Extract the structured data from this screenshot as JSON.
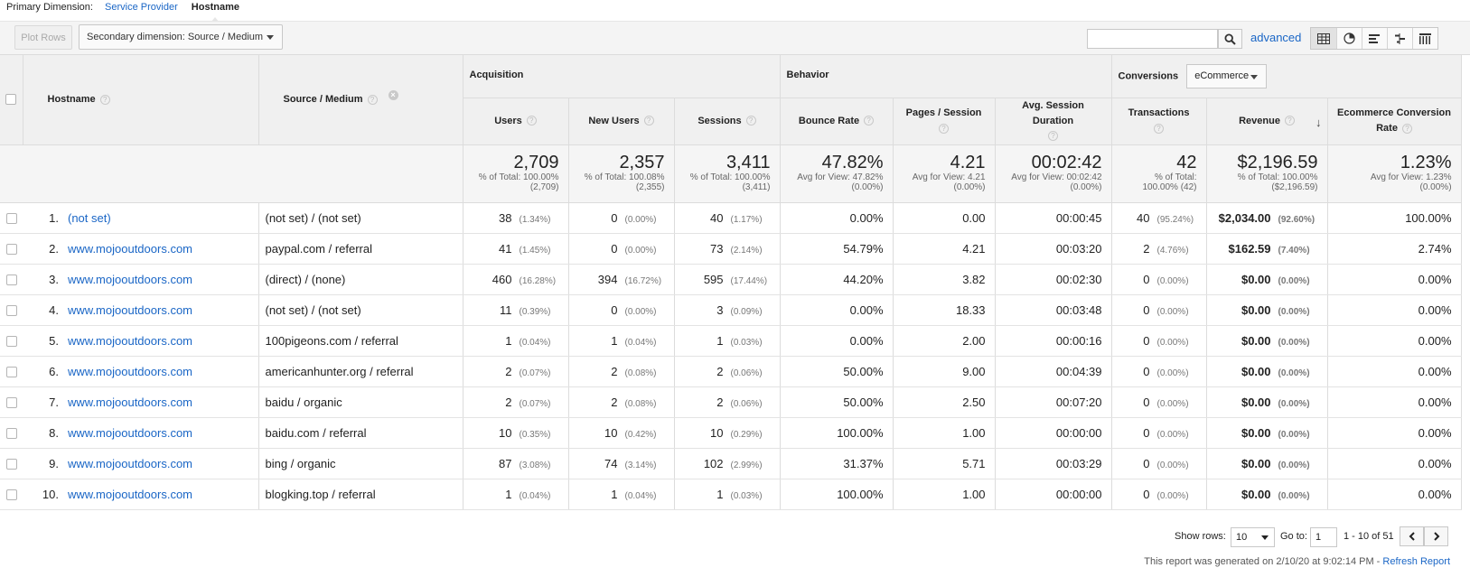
{
  "primary_dimension": {
    "label": "Primary Dimension:",
    "options": [
      "Service Provider",
      "Hostname"
    ],
    "active": "Hostname"
  },
  "toolbar": {
    "plot_rows": "Plot Rows",
    "secondary_dimension": "Secondary dimension: Source / Medium",
    "search_value": "",
    "advanced": "advanced",
    "views": [
      "table-icon",
      "pie-icon",
      "bar-icon",
      "comparison-icon",
      "pivot-icon"
    ]
  },
  "table": {
    "groups": {
      "acquisition": "Acquisition",
      "behavior": "Behavior",
      "conversions": "Conversions",
      "conversions_select": "eCommerce"
    },
    "columns": {
      "hostname": "Hostname",
      "source_medium": "Source / Medium",
      "users": "Users",
      "new_users": "New Users",
      "sessions": "Sessions",
      "bounce_rate": "Bounce Rate",
      "pages_session": "Pages / Session",
      "avg_session_duration": "Avg. Session Duration",
      "transactions": "Transactions",
      "revenue": "Revenue",
      "ecommerce_conversion_rate": "Ecommerce Conversion Rate"
    },
    "totals": {
      "users": {
        "value": "2,709",
        "sub1": "% of Total: 100.00%",
        "sub2": "(2,709)"
      },
      "new_users": {
        "value": "2,357",
        "sub1": "% of Total: 100.08%",
        "sub2": "(2,355)"
      },
      "sessions": {
        "value": "3,411",
        "sub1": "% of Total: 100.00%",
        "sub2": "(3,411)"
      },
      "bounce_rate": {
        "value": "47.82%",
        "sub1": "Avg for View: 47.82%",
        "sub2": "(0.00%)"
      },
      "pages_session": {
        "value": "4.21",
        "sub1": "Avg for View: 4.21",
        "sub2": "(0.00%)"
      },
      "avg_session_duration": {
        "value": "00:02:42",
        "sub1": "Avg for View: 00:02:42",
        "sub2": "(0.00%)"
      },
      "transactions": {
        "value": "42",
        "sub1": "% of Total:",
        "sub2": "100.00% (42)"
      },
      "revenue": {
        "value": "$2,196.59",
        "sub1": "% of Total: 100.00%",
        "sub2": "($2,196.59)"
      },
      "ecommerce_conversion_rate": {
        "value": "1.23%",
        "sub1": "Avg for View: 1.23%",
        "sub2": "(0.00%)"
      }
    },
    "rows": [
      {
        "idx": "1.",
        "hostname": "(not set)",
        "source": "(not set) / (not set)",
        "users": "38",
        "users_pct": "(1.34%)",
        "new_users": "0",
        "new_users_pct": "(0.00%)",
        "sessions": "40",
        "sessions_pct": "(1.17%)",
        "bounce": "0.00%",
        "pages": "0.00",
        "duration": "00:00:45",
        "transactions": "40",
        "transactions_pct": "(95.24%)",
        "revenue": "$2,034.00",
        "revenue_pct": "(92.60%)",
        "conv": "100.00%"
      },
      {
        "idx": "2.",
        "hostname": "www.mojooutdoors.com",
        "source": "paypal.com / referral",
        "users": "41",
        "users_pct": "(1.45%)",
        "new_users": "0",
        "new_users_pct": "(0.00%)",
        "sessions": "73",
        "sessions_pct": "(2.14%)",
        "bounce": "54.79%",
        "pages": "4.21",
        "duration": "00:03:20",
        "transactions": "2",
        "transactions_pct": "(4.76%)",
        "revenue": "$162.59",
        "revenue_pct": "(7.40%)",
        "conv": "2.74%"
      },
      {
        "idx": "3.",
        "hostname": "www.mojooutdoors.com",
        "source": "(direct) / (none)",
        "users": "460",
        "users_pct": "(16.28%)",
        "new_users": "394",
        "new_users_pct": "(16.72%)",
        "sessions": "595",
        "sessions_pct": "(17.44%)",
        "bounce": "44.20%",
        "pages": "3.82",
        "duration": "00:02:30",
        "transactions": "0",
        "transactions_pct": "(0.00%)",
        "revenue": "$0.00",
        "revenue_pct": "(0.00%)",
        "conv": "0.00%"
      },
      {
        "idx": "4.",
        "hostname": "www.mojooutdoors.com",
        "source": "(not set) / (not set)",
        "users": "11",
        "users_pct": "(0.39%)",
        "new_users": "0",
        "new_users_pct": "(0.00%)",
        "sessions": "3",
        "sessions_pct": "(0.09%)",
        "bounce": "0.00%",
        "pages": "18.33",
        "duration": "00:03:48",
        "transactions": "0",
        "transactions_pct": "(0.00%)",
        "revenue": "$0.00",
        "revenue_pct": "(0.00%)",
        "conv": "0.00%"
      },
      {
        "idx": "5.",
        "hostname": "www.mojooutdoors.com",
        "source": "100pigeons.com / referral",
        "users": "1",
        "users_pct": "(0.04%)",
        "new_users": "1",
        "new_users_pct": "(0.04%)",
        "sessions": "1",
        "sessions_pct": "(0.03%)",
        "bounce": "0.00%",
        "pages": "2.00",
        "duration": "00:00:16",
        "transactions": "0",
        "transactions_pct": "(0.00%)",
        "revenue": "$0.00",
        "revenue_pct": "(0.00%)",
        "conv": "0.00%"
      },
      {
        "idx": "6.",
        "hostname": "www.mojooutdoors.com",
        "source": "americanhunter.org / referral",
        "users": "2",
        "users_pct": "(0.07%)",
        "new_users": "2",
        "new_users_pct": "(0.08%)",
        "sessions": "2",
        "sessions_pct": "(0.06%)",
        "bounce": "50.00%",
        "pages": "9.00",
        "duration": "00:04:39",
        "transactions": "0",
        "transactions_pct": "(0.00%)",
        "revenue": "$0.00",
        "revenue_pct": "(0.00%)",
        "conv": "0.00%"
      },
      {
        "idx": "7.",
        "hostname": "www.mojooutdoors.com",
        "source": "baidu / organic",
        "users": "2",
        "users_pct": "(0.07%)",
        "new_users": "2",
        "new_users_pct": "(0.08%)",
        "sessions": "2",
        "sessions_pct": "(0.06%)",
        "bounce": "50.00%",
        "pages": "2.50",
        "duration": "00:07:20",
        "transactions": "0",
        "transactions_pct": "(0.00%)",
        "revenue": "$0.00",
        "revenue_pct": "(0.00%)",
        "conv": "0.00%"
      },
      {
        "idx": "8.",
        "hostname": "www.mojooutdoors.com",
        "source": "baidu.com / referral",
        "users": "10",
        "users_pct": "(0.35%)",
        "new_users": "10",
        "new_users_pct": "(0.42%)",
        "sessions": "10",
        "sessions_pct": "(0.29%)",
        "bounce": "100.00%",
        "pages": "1.00",
        "duration": "00:00:00",
        "transactions": "0",
        "transactions_pct": "(0.00%)",
        "revenue": "$0.00",
        "revenue_pct": "(0.00%)",
        "conv": "0.00%"
      },
      {
        "idx": "9.",
        "hostname": "www.mojooutdoors.com",
        "source": "bing / organic",
        "users": "87",
        "users_pct": "(3.08%)",
        "new_users": "74",
        "new_users_pct": "(3.14%)",
        "sessions": "102",
        "sessions_pct": "(2.99%)",
        "bounce": "31.37%",
        "pages": "5.71",
        "duration": "00:03:29",
        "transactions": "0",
        "transactions_pct": "(0.00%)",
        "revenue": "$0.00",
        "revenue_pct": "(0.00%)",
        "conv": "0.00%"
      },
      {
        "idx": "10.",
        "hostname": "www.mojooutdoors.com",
        "source": "blogking.top / referral",
        "users": "1",
        "users_pct": "(0.04%)",
        "new_users": "1",
        "new_users_pct": "(0.04%)",
        "sessions": "1",
        "sessions_pct": "(0.03%)",
        "bounce": "100.00%",
        "pages": "1.00",
        "duration": "00:00:00",
        "transactions": "0",
        "transactions_pct": "(0.00%)",
        "revenue": "$0.00",
        "revenue_pct": "(0.00%)",
        "conv": "0.00%"
      }
    ]
  },
  "pagination": {
    "show_rows_label": "Show rows:",
    "show_rows_value": "10",
    "goto_label": "Go to:",
    "goto_value": "1",
    "range": "1 - 10 of 51"
  },
  "footer": {
    "note": "This report was generated on 2/10/20 at 9:02:14 PM - ",
    "refresh": "Refresh Report"
  },
  "colors": {
    "link": "#1a66c6",
    "header_bg": "#f0f0f0",
    "border": "#dcdcdc"
  }
}
